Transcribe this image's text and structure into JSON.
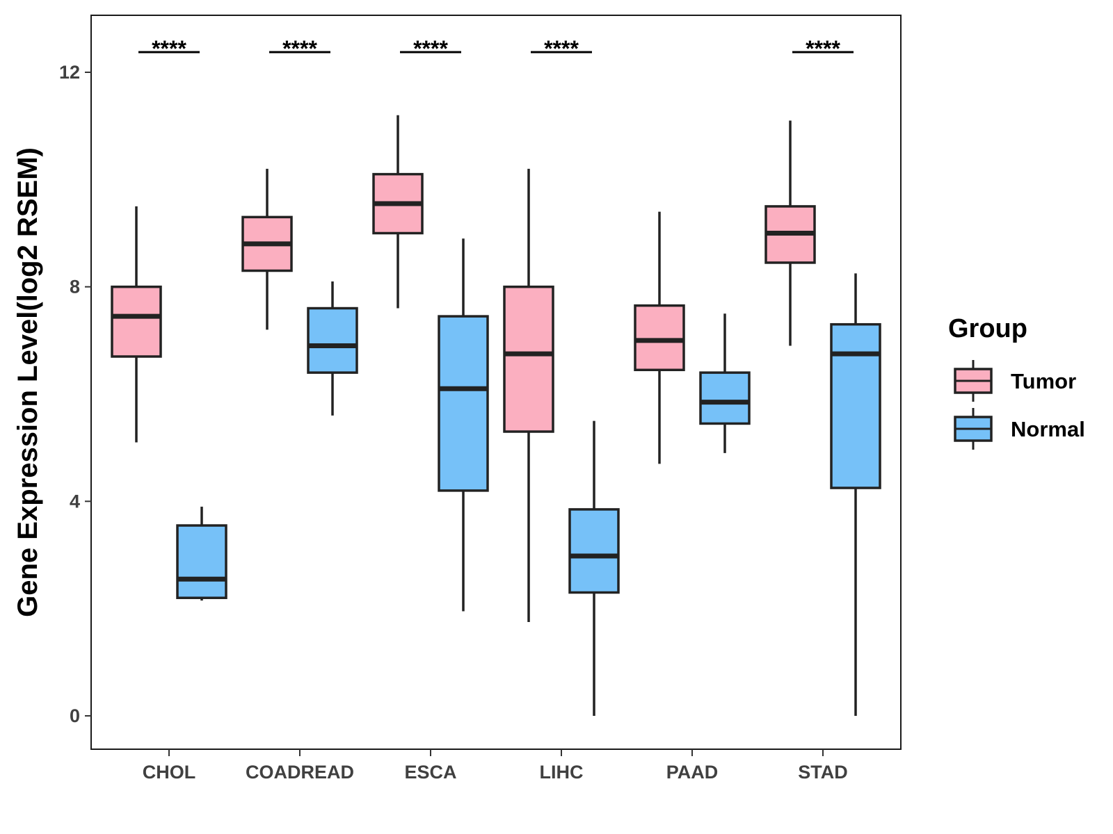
{
  "chart_data": {
    "type": "boxplot",
    "title": "",
    "xlabel": "",
    "ylabel": "Gene Expression Level(log2 RSEM)",
    "ylim": [
      -0.6,
      13.1
    ],
    "yticks": [
      0,
      4,
      8,
      12
    ],
    "grid": false,
    "categories": [
      "CHOL",
      "COADREAD",
      "ESCA",
      "LIHC",
      "PAAD",
      "STAD"
    ],
    "legend": {
      "title": "Group",
      "position": "right",
      "entries": [
        {
          "label": "Tumor",
          "color": "#FBAFC0"
        },
        {
          "label": "Normal",
          "color": "#76C1F8"
        }
      ]
    },
    "series": [
      {
        "name": "Tumor",
        "color": "#FBAFC0",
        "boxes": [
          {
            "category": "CHOL",
            "min": 5.1,
            "q1": 6.7,
            "median": 7.45,
            "q3": 8.0,
            "max": 9.5
          },
          {
            "category": "COADREAD",
            "min": 7.2,
            "q1": 8.3,
            "median": 8.8,
            "q3": 9.3,
            "max": 10.2
          },
          {
            "category": "ESCA",
            "min": 7.6,
            "q1": 9.0,
            "median": 9.55,
            "q3": 10.1,
            "max": 11.2
          },
          {
            "category": "LIHC",
            "min": 1.75,
            "q1": 5.3,
            "median": 6.75,
            "q3": 8.0,
            "max": 10.2
          },
          {
            "category": "PAAD",
            "min": 4.7,
            "q1": 6.45,
            "median": 7.0,
            "q3": 7.65,
            "max": 9.4
          },
          {
            "category": "STAD",
            "min": 6.9,
            "q1": 8.45,
            "median": 9.0,
            "q3": 9.5,
            "max": 11.1
          }
        ]
      },
      {
        "name": "Normal",
        "color": "#76C1F8",
        "boxes": [
          {
            "category": "CHOL",
            "min": 2.15,
            "q1": 2.2,
            "median": 2.55,
            "q3": 3.55,
            "max": 3.9
          },
          {
            "category": "COADREAD",
            "min": 5.6,
            "q1": 6.4,
            "median": 6.9,
            "q3": 7.6,
            "max": 8.1
          },
          {
            "category": "ESCA",
            "min": 1.95,
            "q1": 4.2,
            "median": 6.1,
            "q3": 7.45,
            "max": 8.9
          },
          {
            "category": "LIHC",
            "min": 0.0,
            "q1": 2.3,
            "median": 2.98,
            "q3": 3.85,
            "max": 5.5
          },
          {
            "category": "PAAD",
            "min": 4.9,
            "q1": 5.45,
            "median": 5.85,
            "q3": 6.4,
            "max": 7.5
          },
          {
            "category": "STAD",
            "min": 0.0,
            "q1": 4.25,
            "median": 6.75,
            "q3": 7.3,
            "max": 8.25
          }
        ]
      }
    ],
    "annotations": [
      {
        "category": "CHOL",
        "text": "****"
      },
      {
        "category": "COADREAD",
        "text": "****"
      },
      {
        "category": "ESCA",
        "text": "****"
      },
      {
        "category": "LIHC",
        "text": "****"
      },
      {
        "category": "STAD",
        "text": "****"
      }
    ]
  }
}
